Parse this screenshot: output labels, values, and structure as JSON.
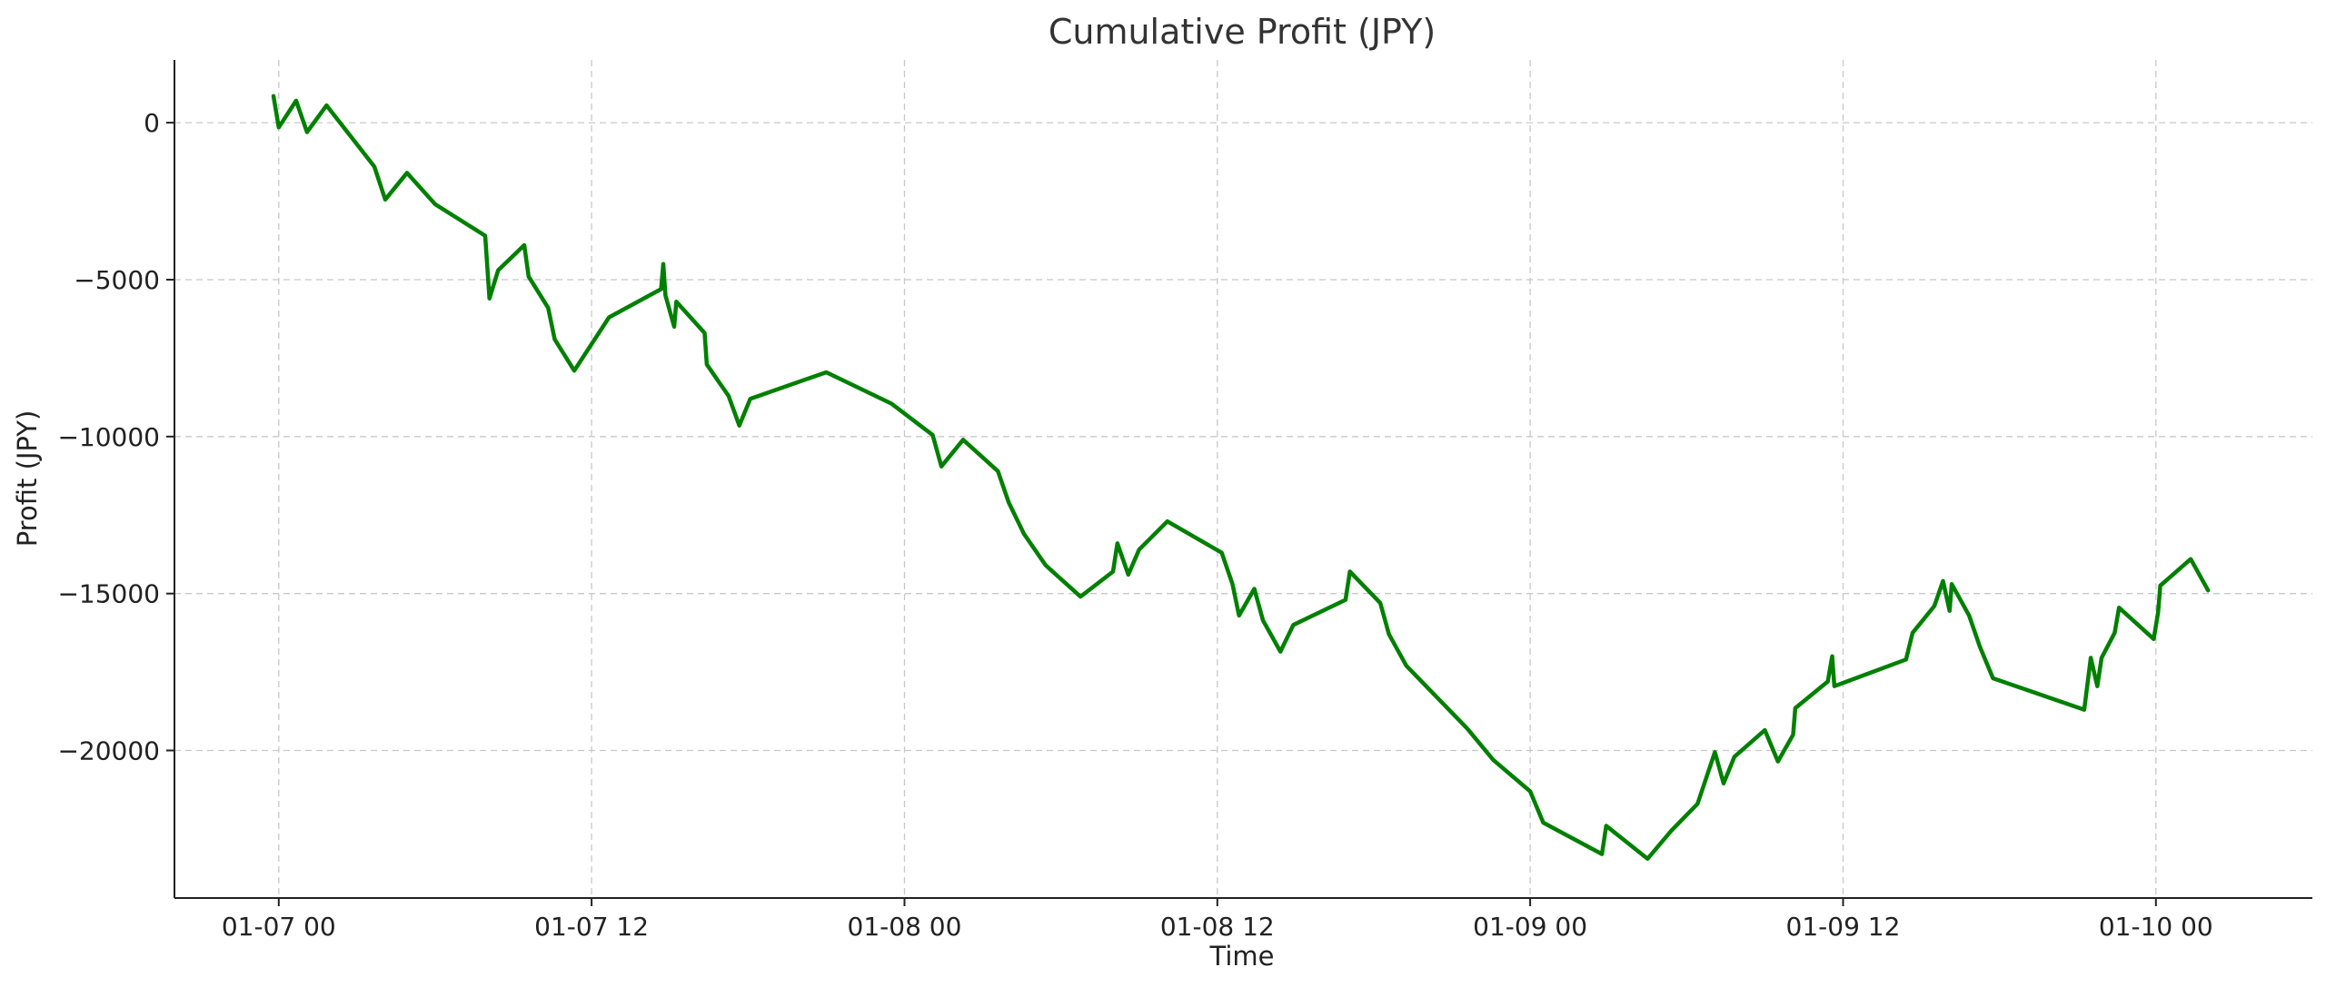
{
  "chart_data": {
    "type": "line",
    "title": "Cumulative Profit (JPY)",
    "xlabel": "Time",
    "ylabel": "Profit (JPY)",
    "x_axis_type": "datetime",
    "x_tick_labels": [
      "01-07 00",
      "01-07 12",
      "01-08 00",
      "01-08 12",
      "01-09 00",
      "01-09 12",
      "01-10 00"
    ],
    "x_ticks": [
      "2025-01-07T00:00",
      "2025-01-07T12:00",
      "2025-01-08T00:00",
      "2025-01-08T12:00",
      "2025-01-09T00:00",
      "2025-01-09T12:00",
      "2025-01-10T00:00"
    ],
    "xlim": [
      "2025-01-06T20:00",
      "2025-01-10T06:00"
    ],
    "y_ticks": [
      0,
      -5000,
      -10000,
      -15000,
      -20000
    ],
    "ylim": [
      -24700,
      2000
    ],
    "grid": true,
    "color": "#008000",
    "series": [
      {
        "values": [
          [
            "2025-01-06T23:48",
            850
          ],
          [
            "2025-01-07T00:00",
            -150
          ],
          [
            "2025-01-07T00:40",
            700
          ],
          [
            "2025-01-07T01:05",
            -300
          ],
          [
            "2025-01-07T01:50",
            550
          ],
          [
            "2025-01-07T03:40",
            -1400
          ],
          [
            "2025-01-07T04:05",
            -2450
          ],
          [
            "2025-01-07T04:55",
            -1600
          ],
          [
            "2025-01-07T06:00",
            -2600
          ],
          [
            "2025-01-07T07:55",
            -3600
          ],
          [
            "2025-01-07T08:05",
            -5600
          ],
          [
            "2025-01-07T08:25",
            -4700
          ],
          [
            "2025-01-07T09:25",
            -3900
          ],
          [
            "2025-01-07T09:35",
            -4900
          ],
          [
            "2025-01-07T10:20",
            -5900
          ],
          [
            "2025-01-07T10:35",
            -6900
          ],
          [
            "2025-01-07T11:20",
            -7900
          ],
          [
            "2025-01-07T12:40",
            -6200
          ],
          [
            "2025-01-07T14:40",
            -5300
          ],
          [
            "2025-01-07T14:45",
            -4500
          ],
          [
            "2025-01-07T14:50",
            -5500
          ],
          [
            "2025-01-07T15:10",
            -6500
          ],
          [
            "2025-01-07T15:15",
            -5700
          ],
          [
            "2025-01-07T16:20",
            -6700
          ],
          [
            "2025-01-07T16:25",
            -7700
          ],
          [
            "2025-01-07T16:55",
            -8300
          ],
          [
            "2025-01-07T17:15",
            -8700
          ],
          [
            "2025-01-07T17:40",
            -9650
          ],
          [
            "2025-01-07T18:05",
            -8800
          ],
          [
            "2025-01-07T21:00",
            -7950
          ],
          [
            "2025-01-07T23:30",
            -8950
          ],
          [
            "2025-01-08T01:05",
            -9950
          ],
          [
            "2025-01-08T01:25",
            -10950
          ],
          [
            "2025-01-08T02:15",
            -10100
          ],
          [
            "2025-01-08T03:35",
            -11100
          ],
          [
            "2025-01-08T04:00",
            -12100
          ],
          [
            "2025-01-08T04:35",
            -13100
          ],
          [
            "2025-01-08T05:25",
            -14100
          ],
          [
            "2025-01-08T06:45",
            -15100
          ],
          [
            "2025-01-08T08:00",
            -14300
          ],
          [
            "2025-01-08T08:10",
            -13400
          ],
          [
            "2025-01-08T08:35",
            -14400
          ],
          [
            "2025-01-08T09:00",
            -13600
          ],
          [
            "2025-01-08T10:05",
            -12700
          ],
          [
            "2025-01-08T12:10",
            -13700
          ],
          [
            "2025-01-08T12:35",
            -14700
          ],
          [
            "2025-01-08T12:50",
            -15700
          ],
          [
            "2025-01-08T13:25",
            -14850
          ],
          [
            "2025-01-08T13:45",
            -15850
          ],
          [
            "2025-01-08T14:25",
            -16850
          ],
          [
            "2025-01-08T14:55",
            -16000
          ],
          [
            "2025-01-08T16:55",
            -15200
          ],
          [
            "2025-01-08T17:05",
            -14300
          ],
          [
            "2025-01-08T18:15",
            -15300
          ],
          [
            "2025-01-08T18:35",
            -16300
          ],
          [
            "2025-01-08T19:15",
            -17300
          ],
          [
            "2025-01-08T21:35",
            -19300
          ],
          [
            "2025-01-08T22:35",
            -20300
          ],
          [
            "2025-01-09T00:00",
            -21300
          ],
          [
            "2025-01-09T00:30",
            -22300
          ],
          [
            "2025-01-09T02:45",
            -23300
          ],
          [
            "2025-01-09T02:55",
            -22400
          ],
          [
            "2025-01-09T04:30",
            -23450
          ],
          [
            "2025-01-09T05:25",
            -22550
          ],
          [
            "2025-01-09T06:25",
            -21700
          ],
          [
            "2025-01-09T07:05",
            -20050
          ],
          [
            "2025-01-09T07:25",
            -21050
          ],
          [
            "2025-01-09T07:50",
            -20200
          ],
          [
            "2025-01-09T09:00",
            -19350
          ],
          [
            "2025-01-09T09:30",
            -20350
          ],
          [
            "2025-01-09T10:05",
            -19500
          ],
          [
            "2025-01-09T10:10",
            -18650
          ],
          [
            "2025-01-09T11:25",
            -17800
          ],
          [
            "2025-01-09T11:35",
            -17000
          ],
          [
            "2025-01-09T11:40",
            -17950
          ],
          [
            "2025-01-09T14:25",
            -17100
          ],
          [
            "2025-01-09T14:40",
            -16250
          ],
          [
            "2025-01-09T15:30",
            -15400
          ],
          [
            "2025-01-09T15:50",
            -14600
          ],
          [
            "2025-01-09T16:05",
            -15550
          ],
          [
            "2025-01-09T16:10",
            -14700
          ],
          [
            "2025-01-09T16:50",
            -15700
          ],
          [
            "2025-01-09T17:15",
            -16700
          ],
          [
            "2025-01-09T17:45",
            -17700
          ],
          [
            "2025-01-09T21:15",
            -18700
          ],
          [
            "2025-01-09T21:30",
            -17050
          ],
          [
            "2025-01-09T21:45",
            -17950
          ],
          [
            "2025-01-09T21:55",
            -17050
          ],
          [
            "2025-01-09T22:25",
            -16250
          ],
          [
            "2025-01-09T22:35",
            -15450
          ],
          [
            "2025-01-09T23:55",
            -16450
          ],
          [
            "2025-01-10T00:05",
            -15600
          ],
          [
            "2025-01-10T00:10",
            -14750
          ],
          [
            "2025-01-10T01:20",
            -13900
          ],
          [
            "2025-01-10T02:00",
            -14900
          ]
        ]
      }
    ]
  }
}
